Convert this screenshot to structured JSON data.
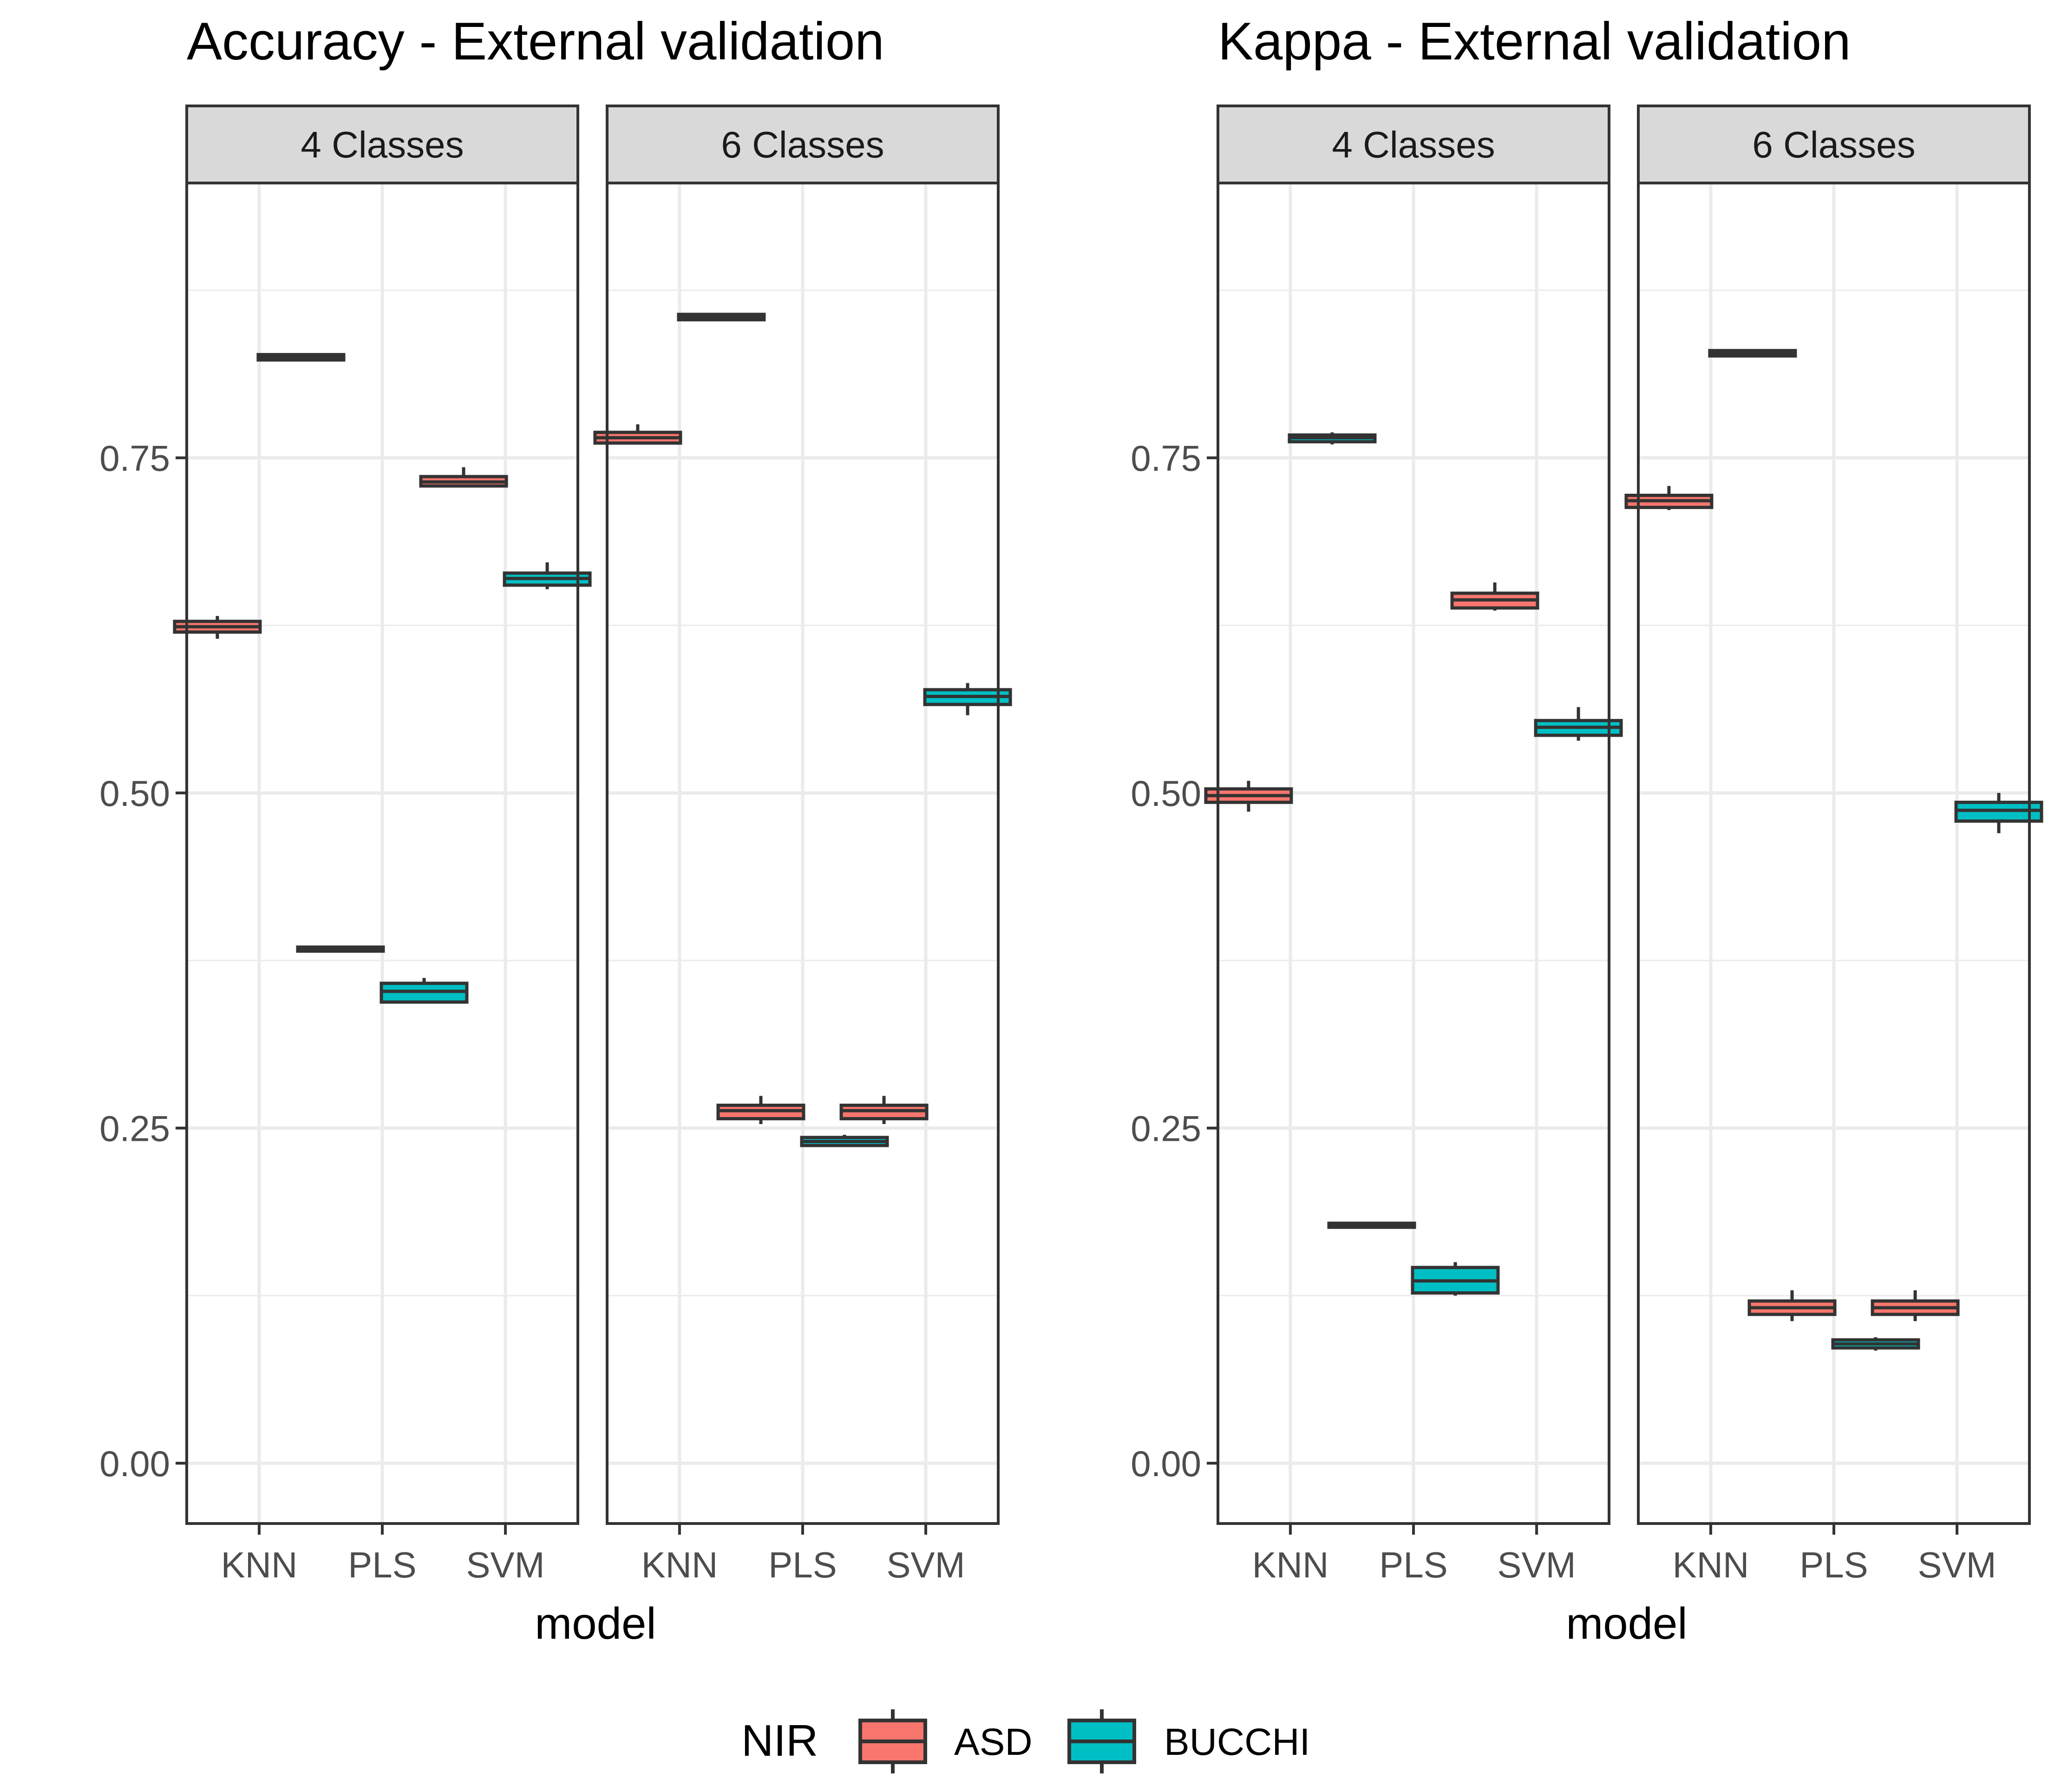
{
  "colors": {
    "ASD": "#F8766D",
    "BUCCHI": "#00BFC4",
    "box_outline": "#333333",
    "strip_fill": "#D9D9D9",
    "grid": "#EBEBEB",
    "panel_border": "#333333",
    "tick_text": "#4D4D4D"
  },
  "legend": {
    "title": "NIR",
    "position": "bottom",
    "items": [
      {
        "key": "ASD",
        "label": "ASD"
      },
      {
        "key": "BUCCHI",
        "label": "BUCCHI"
      }
    ]
  },
  "chart_data": [
    {
      "type": "boxplot",
      "title": "Accuracy - External validation",
      "xlabel": "model",
      "ylabel": "",
      "ylim": [
        -0.045,
        0.955
      ],
      "yticks": [
        0.0,
        0.25,
        0.5,
        0.75
      ],
      "ytick_labels": [
        "0.00",
        "0.25",
        "0.50",
        "0.75"
      ],
      "categories": [
        "KNN",
        "PLS",
        "SVM"
      ],
      "facets": [
        {
          "label": "4 Classes",
          "boxes": [
            {
              "x": "KNN",
              "group": "ASD",
              "min": 0.615,
              "q1": 0.62,
              "median": 0.624,
              "q3": 0.628,
              "max": 0.632
            },
            {
              "x": "KNN",
              "group": "BUCCHI",
              "min": 0.822,
              "q1": 0.823,
              "median": 0.825,
              "q3": 0.827,
              "max": 0.828
            },
            {
              "x": "PLS",
              "group": "ASD",
              "min": 0.381,
              "q1": 0.382,
              "median": 0.383,
              "q3": 0.385,
              "max": 0.386
            },
            {
              "x": "PLS",
              "group": "BUCCHI",
              "min": 0.343,
              "q1": 0.344,
              "median": 0.352,
              "q3": 0.358,
              "max": 0.362
            },
            {
              "x": "SVM",
              "group": "ASD",
              "min": 0.728,
              "q1": 0.729,
              "median": 0.732,
              "q3": 0.736,
              "max": 0.743
            },
            {
              "x": "SVM",
              "group": "BUCCHI",
              "min": 0.652,
              "q1": 0.655,
              "median": 0.66,
              "q3": 0.664,
              "max": 0.672
            }
          ]
        },
        {
          "label": "6 Classes",
          "boxes": [
            {
              "x": "KNN",
              "group": "ASD",
              "min": 0.76,
              "q1": 0.761,
              "median": 0.765,
              "q3": 0.769,
              "max": 0.775
            },
            {
              "x": "KNN",
              "group": "BUCCHI",
              "min": 0.852,
              "q1": 0.853,
              "median": 0.855,
              "q3": 0.857,
              "max": 0.858
            },
            {
              "x": "PLS",
              "group": "ASD",
              "min": 0.253,
              "q1": 0.257,
              "median": 0.263,
              "q3": 0.267,
              "max": 0.274
            },
            {
              "x": "PLS",
              "group": "BUCCHI",
              "min": 0.236,
              "q1": 0.237,
              "median": 0.24,
              "q3": 0.243,
              "max": 0.245
            },
            {
              "x": "SVM",
              "group": "ASD",
              "min": 0.253,
              "q1": 0.257,
              "median": 0.263,
              "q3": 0.267,
              "max": 0.274
            },
            {
              "x": "SVM",
              "group": "BUCCHI",
              "min": 0.558,
              "q1": 0.566,
              "median": 0.572,
              "q3": 0.577,
              "max": 0.582
            }
          ]
        }
      ]
    },
    {
      "type": "boxplot",
      "title": "Kappa - External validation",
      "xlabel": "model",
      "ylabel": "",
      "ylim": [
        -0.045,
        0.955
      ],
      "yticks": [
        0.0,
        0.25,
        0.5,
        0.75
      ],
      "ytick_labels": [
        "0.00",
        "0.25",
        "0.50",
        "0.75"
      ],
      "categories": [
        "KNN",
        "PLS",
        "SVM"
      ],
      "facets": [
        {
          "label": "4 Classes",
          "boxes": [
            {
              "x": "KNN",
              "group": "ASD",
              "min": 0.486,
              "q1": 0.493,
              "median": 0.498,
              "q3": 0.503,
              "max": 0.509
            },
            {
              "x": "KNN",
              "group": "BUCCHI",
              "min": 0.76,
              "q1": 0.762,
              "median": 0.765,
              "q3": 0.767,
              "max": 0.769
            },
            {
              "x": "PLS",
              "group": "ASD",
              "min": 0.175,
              "q1": 0.176,
              "median": 0.177,
              "q3": 0.179,
              "max": 0.18
            },
            {
              "x": "PLS",
              "group": "BUCCHI",
              "min": 0.125,
              "q1": 0.127,
              "median": 0.136,
              "q3": 0.146,
              "max": 0.15
            },
            {
              "x": "SVM",
              "group": "ASD",
              "min": 0.636,
              "q1": 0.638,
              "median": 0.644,
              "q3": 0.649,
              "max": 0.657
            },
            {
              "x": "SVM",
              "group": "BUCCHI",
              "min": 0.539,
              "q1": 0.543,
              "median": 0.549,
              "q3": 0.554,
              "max": 0.564
            }
          ]
        },
        {
          "label": "6 Classes",
          "boxes": [
            {
              "x": "KNN",
              "group": "ASD",
              "min": 0.711,
              "q1": 0.713,
              "median": 0.718,
              "q3": 0.722,
              "max": 0.729
            },
            {
              "x": "KNN",
              "group": "BUCCHI",
              "min": 0.825,
              "q1": 0.826,
              "median": 0.828,
              "q3": 0.83,
              "max": 0.831
            },
            {
              "x": "PLS",
              "group": "ASD",
              "min": 0.106,
              "q1": 0.111,
              "median": 0.116,
              "q3": 0.121,
              "max": 0.129
            },
            {
              "x": "PLS",
              "group": "BUCCHI",
              "min": 0.084,
              "q1": 0.086,
              "median": 0.089,
              "q3": 0.092,
              "max": 0.094
            },
            {
              "x": "SVM",
              "group": "ASD",
              "min": 0.106,
              "q1": 0.111,
              "median": 0.116,
              "q3": 0.121,
              "max": 0.129
            },
            {
              "x": "SVM",
              "group": "BUCCHI",
              "min": 0.47,
              "q1": 0.479,
              "median": 0.487,
              "q3": 0.493,
              "max": 0.5
            }
          ]
        }
      ]
    }
  ]
}
